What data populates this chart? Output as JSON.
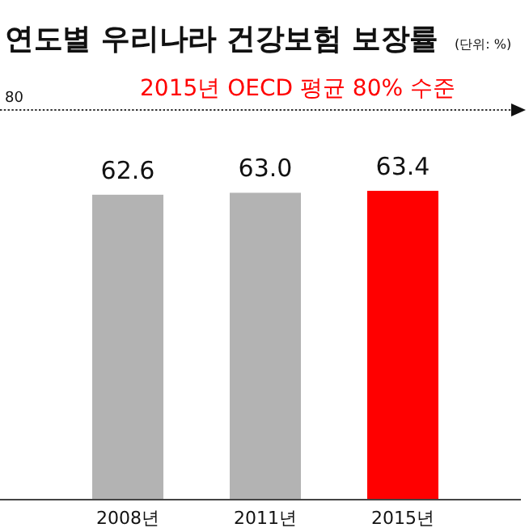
{
  "chart_data": {
    "type": "bar",
    "title": "연도별 우리나라 건강보험 보장률",
    "subtitle": "(단위: %)",
    "categories": [
      "2008년",
      "2011년",
      "2015년"
    ],
    "values": [
      62.6,
      63.0,
      63.4
    ],
    "value_labels": [
      "62.6",
      "63.0",
      "63.4"
    ],
    "colors": [
      "#b3b3b3",
      "#b3b3b3",
      "#ff0000"
    ],
    "ylim": [
      0,
      80
    ],
    "annotations": [
      {
        "text": "80",
        "y": 80
      }
    ],
    "ref_lines": [
      {
        "axis": "y",
        "value": 80,
        "label": "2015년 OECD 평균 80% 수준",
        "color": "#333333",
        "line_style": "dotted"
      }
    ]
  }
}
